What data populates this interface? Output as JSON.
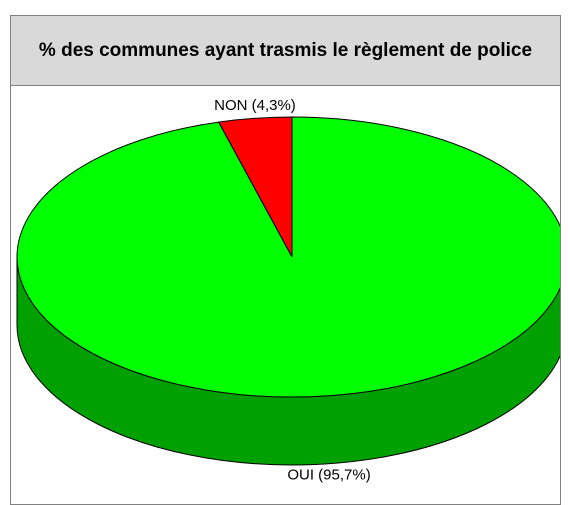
{
  "chart_data": {
    "type": "pie",
    "title": "% des communes ayant trasmis le règlement de police",
    "values": [
      4.3,
      95.7
    ],
    "value_labels": [
      "NON (4,3%)",
      "OUI (95,7%)"
    ],
    "colors": [
      "#ff0000",
      "#00ff00"
    ]
  }
}
